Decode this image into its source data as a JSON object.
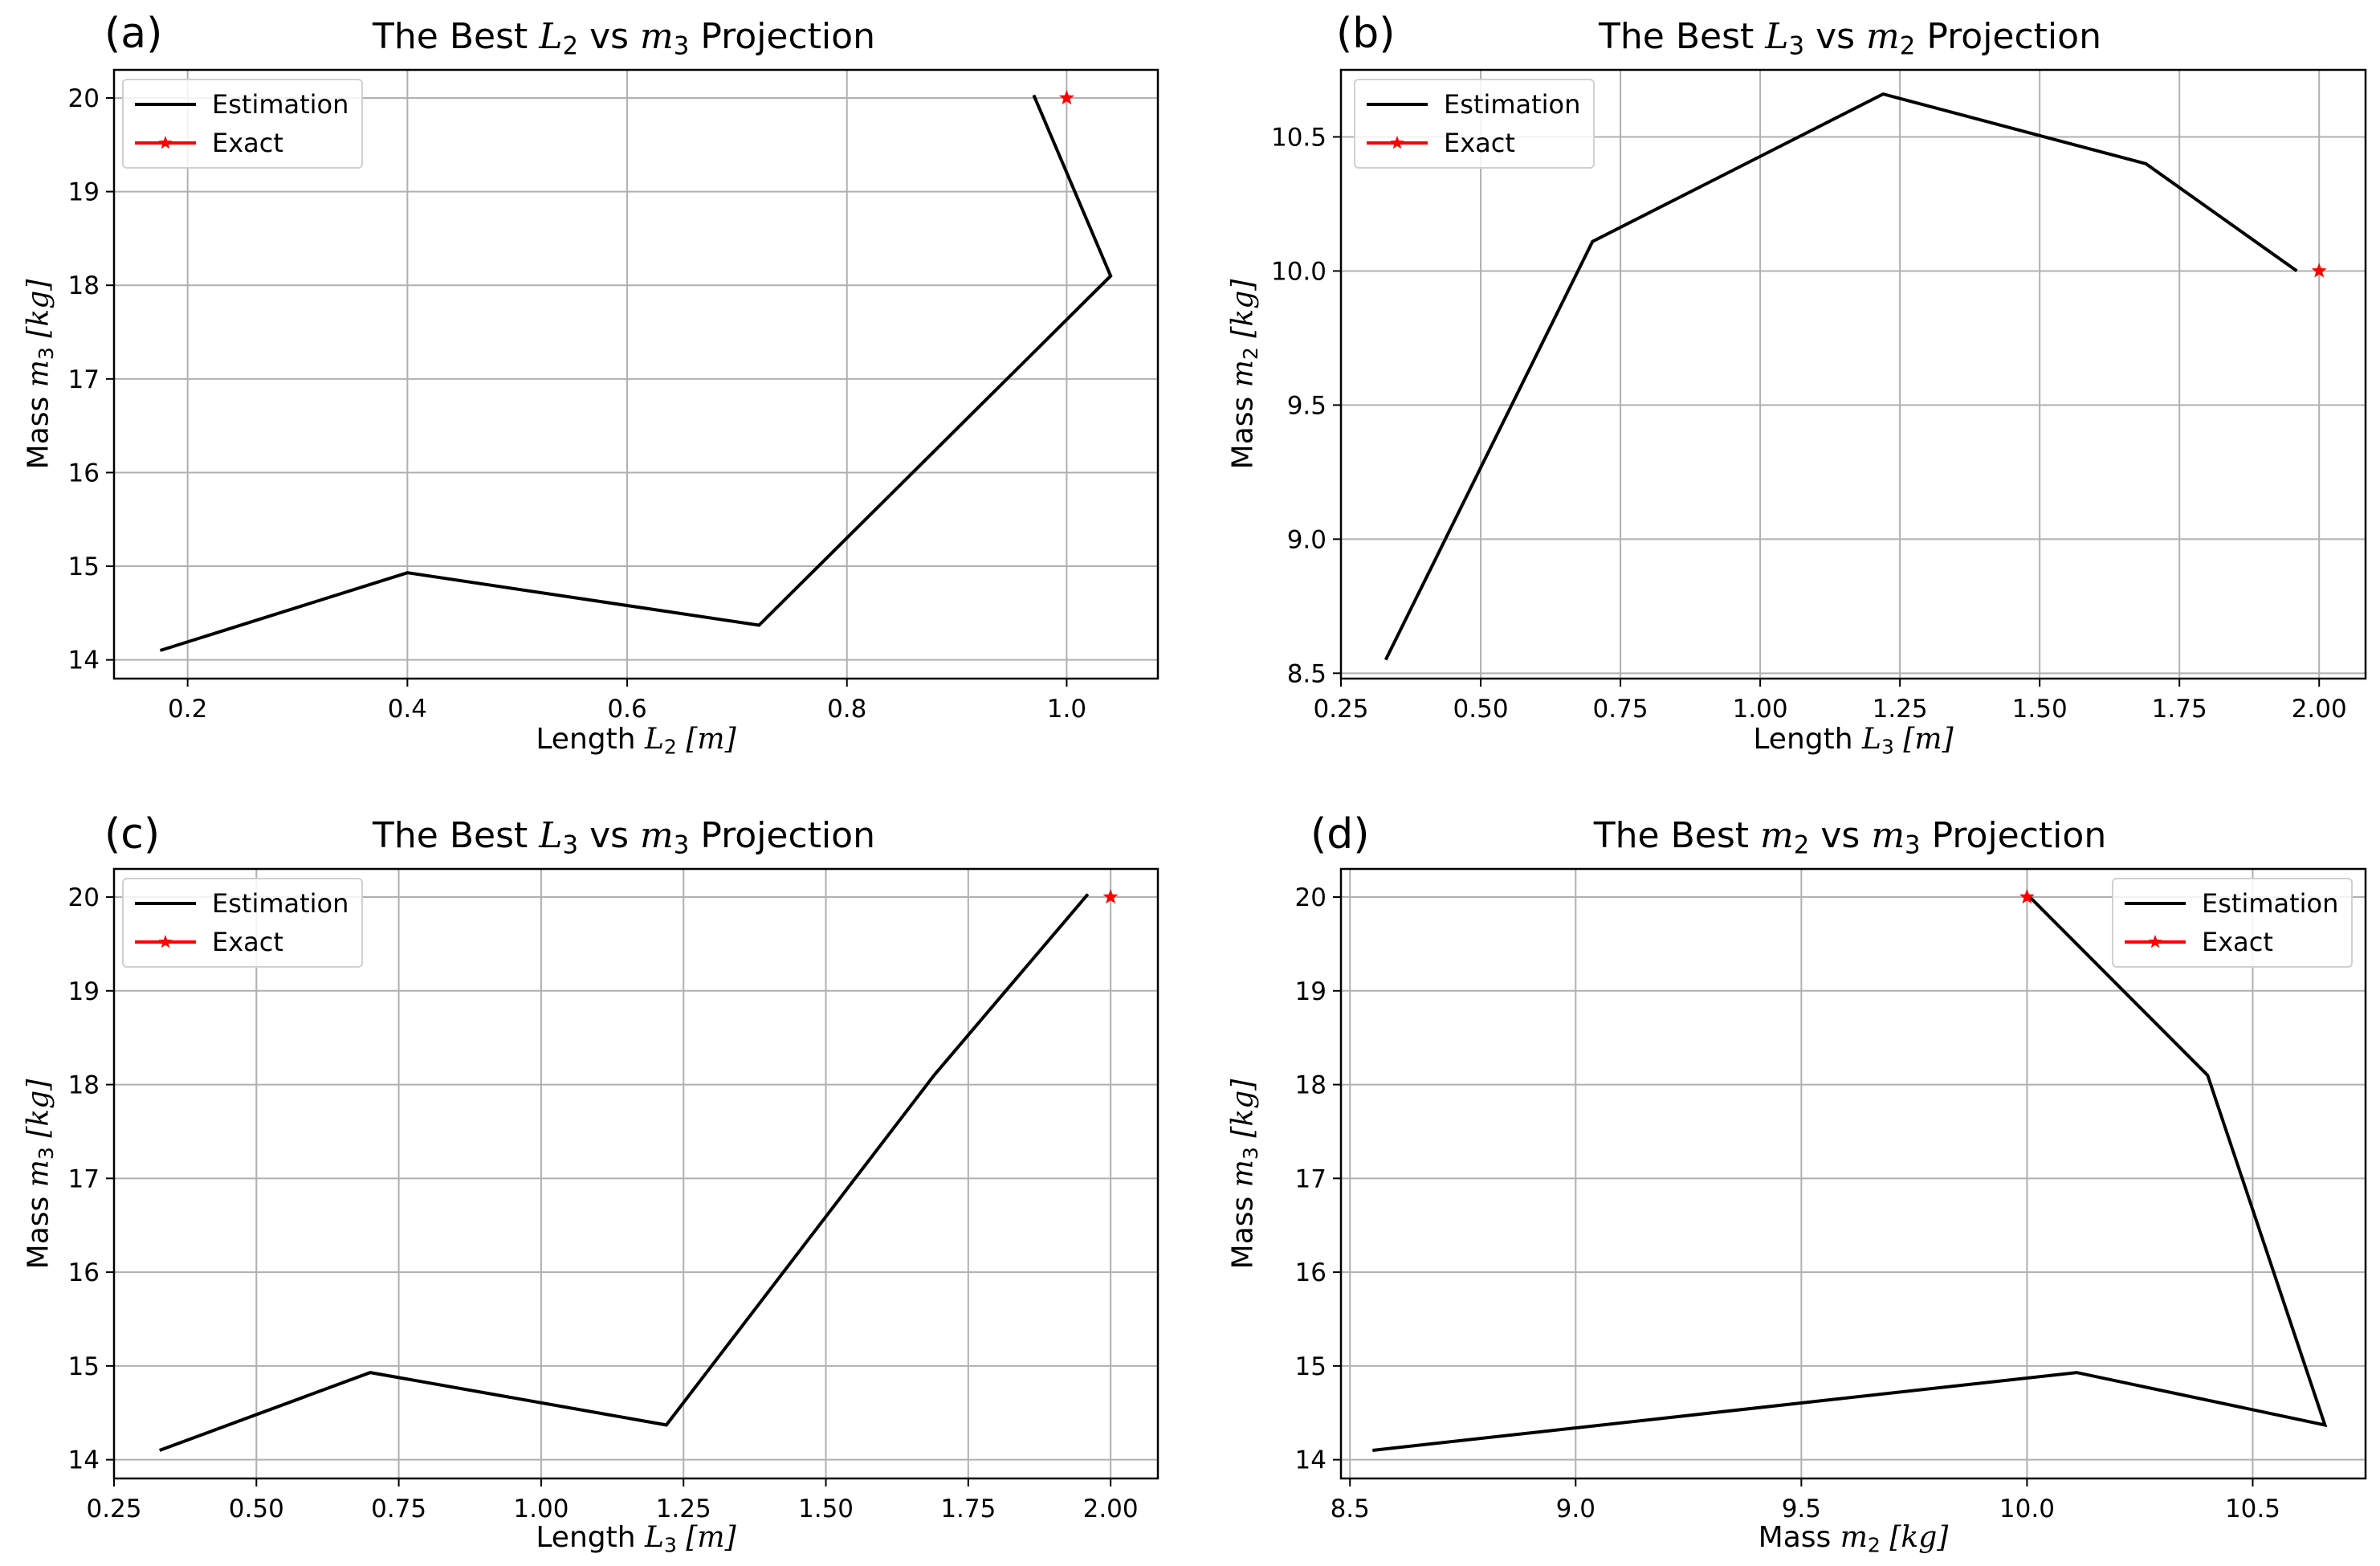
{
  "colors": {
    "estimation": "#000000",
    "exact": "#ff0000",
    "grid": "#b0b0b0"
  },
  "chart_data": [
    {
      "type": "line",
      "tag": "(a)",
      "title": {
        "prefix": "The Best ",
        "v1": "L",
        "s1": "2",
        "mid": " vs ",
        "v2": "m",
        "s2": "3",
        "suffix": " Projection"
      },
      "xlabel": {
        "prefix": "Length ",
        "v": "L",
        "s": "2",
        "unit": "[m]"
      },
      "ylabel": {
        "prefix": "Mass ",
        "v": "m",
        "s": "3",
        "unit": "[kg]"
      },
      "xlim": [
        0.133,
        1.083
      ],
      "ylim": [
        13.8,
        20.3
      ],
      "xticks": [
        0.2,
        0.4,
        0.6,
        0.8,
        1.0
      ],
      "xtick_labels": [
        "0.2",
        "0.4",
        "0.6",
        "0.8",
        "1.0"
      ],
      "yticks": [
        14,
        15,
        16,
        17,
        18,
        19,
        20
      ],
      "ytick_labels": [
        "14",
        "15",
        "16",
        "17",
        "18",
        "19",
        "20"
      ],
      "legend_position": "top-left",
      "legend": [
        "Estimation",
        "Exact"
      ],
      "series": [
        {
          "name": "Estimation",
          "x": [
            0.175,
            0.4,
            0.72,
            1.04,
            0.97
          ],
          "y": [
            14.1,
            14.93,
            14.37,
            18.1,
            20.03
          ]
        },
        {
          "name": "Exact",
          "x": [
            1.0
          ],
          "y": [
            20.0
          ]
        }
      ]
    },
    {
      "type": "line",
      "tag": "(b)",
      "title": {
        "prefix": "The Best ",
        "v1": "L",
        "s1": "3",
        "mid": " vs ",
        "v2": "m",
        "s2": "2",
        "suffix": " Projection"
      },
      "xlabel": {
        "prefix": "Length ",
        "v": "L",
        "s": "3",
        "unit": "[m]"
      },
      "ylabel": {
        "prefix": "Mass ",
        "v": "m",
        "s": "2",
        "unit": "[kg]"
      },
      "xlim": [
        0.25,
        2.083
      ],
      "ylim": [
        8.48,
        10.75
      ],
      "xticks": [
        0.25,
        0.5,
        0.75,
        1.0,
        1.25,
        1.5,
        1.75,
        2.0
      ],
      "xtick_labels": [
        "0.25",
        "0.50",
        "0.75",
        "1.00",
        "1.25",
        "1.50",
        "1.75",
        "2.00"
      ],
      "yticks": [
        8.5,
        9.0,
        9.5,
        10.0,
        10.5
      ],
      "ytick_labels": [
        "8.5",
        "9.0",
        "9.5",
        "10.0",
        "10.5"
      ],
      "legend_position": "top-left",
      "legend": [
        "Estimation",
        "Exact"
      ],
      "series": [
        {
          "name": "Estimation",
          "x": [
            0.33,
            0.7,
            1.22,
            1.69,
            1.96
          ],
          "y": [
            8.55,
            10.11,
            10.66,
            10.4,
            10.0
          ]
        },
        {
          "name": "Exact",
          "x": [
            2.0
          ],
          "y": [
            10.0
          ]
        }
      ]
    },
    {
      "type": "line",
      "tag": "(c)",
      "title": {
        "prefix": "The Best ",
        "v1": "L",
        "s1": "3",
        "mid": " vs ",
        "v2": "m",
        "s2": "3",
        "suffix": " Projection"
      },
      "xlabel": {
        "prefix": "Length ",
        "v": "L",
        "s": "3",
        "unit": "[m]"
      },
      "ylabel": {
        "prefix": "Mass ",
        "v": "m",
        "s": "3",
        "unit": "[kg]"
      },
      "xlim": [
        0.25,
        2.083
      ],
      "ylim": [
        13.8,
        20.3
      ],
      "xticks": [
        0.25,
        0.5,
        0.75,
        1.0,
        1.25,
        1.5,
        1.75,
        2.0
      ],
      "xtick_labels": [
        "0.25",
        "0.50",
        "0.75",
        "1.00",
        "1.25",
        "1.50",
        "1.75",
        "2.00"
      ],
      "yticks": [
        14,
        15,
        16,
        17,
        18,
        19,
        20
      ],
      "ytick_labels": [
        "14",
        "15",
        "16",
        "17",
        "18",
        "19",
        "20"
      ],
      "legend_position": "top-left",
      "legend": [
        "Estimation",
        "Exact"
      ],
      "series": [
        {
          "name": "Estimation",
          "x": [
            0.33,
            0.7,
            1.22,
            1.69,
            1.96
          ],
          "y": [
            14.1,
            14.93,
            14.37,
            18.1,
            20.03
          ]
        },
        {
          "name": "Exact",
          "x": [
            2.0
          ],
          "y": [
            20.0
          ]
        }
      ]
    },
    {
      "type": "line",
      "tag": "(d)",
      "title": {
        "prefix": "The Best ",
        "v1": "m",
        "s1": "2",
        "mid": " vs ",
        "v2": "m",
        "s2": "3",
        "suffix": " Projection"
      },
      "xlabel": {
        "prefix": "Mass ",
        "v": "m",
        "s": "2",
        "unit": "[kg]"
      },
      "ylabel": {
        "prefix": "Mass ",
        "v": "m",
        "s": "3",
        "unit": "[kg]"
      },
      "xlim": [
        8.48,
        10.75
      ],
      "ylim": [
        13.8,
        20.3
      ],
      "xticks": [
        8.5,
        9.0,
        9.5,
        10.0,
        10.5
      ],
      "xtick_labels": [
        "8.5",
        "9.0",
        "9.5",
        "10.0",
        "10.5"
      ],
      "yticks": [
        14,
        15,
        16,
        17,
        18,
        19,
        20
      ],
      "ytick_labels": [
        "14",
        "15",
        "16",
        "17",
        "18",
        "19",
        "20"
      ],
      "legend_position": "top-right",
      "legend": [
        "Estimation",
        "Exact"
      ],
      "series": [
        {
          "name": "Estimation",
          "x": [
            8.55,
            10.11,
            10.66,
            10.4,
            10.0
          ],
          "y": [
            14.1,
            14.93,
            14.37,
            18.1,
            20.03
          ]
        },
        {
          "name": "Exact",
          "x": [
            10.0
          ],
          "y": [
            20.0
          ]
        }
      ]
    }
  ]
}
